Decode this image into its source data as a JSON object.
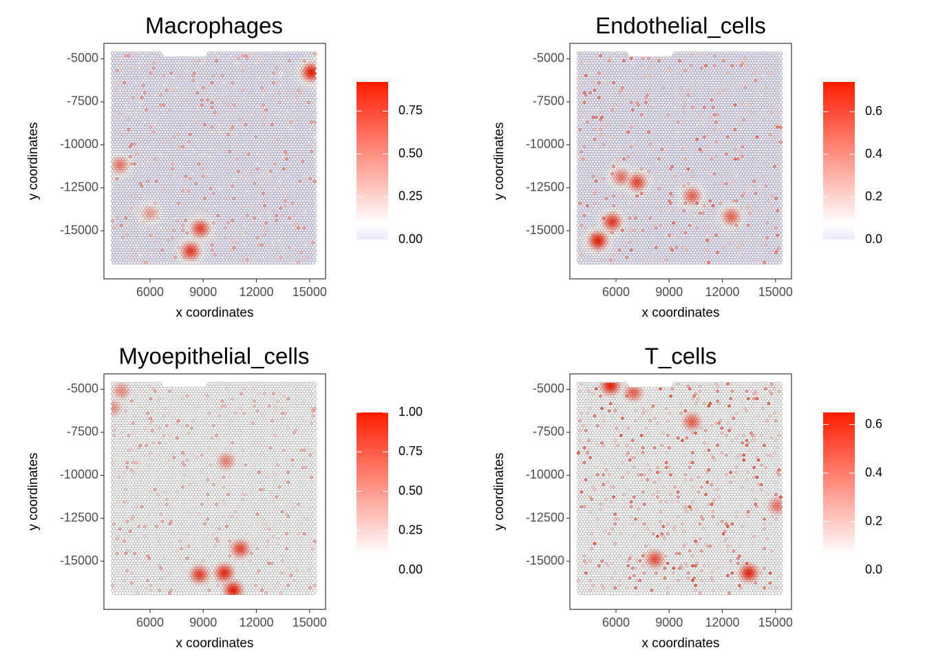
{
  "chart_data": [
    {
      "type": "scatter",
      "title": "Macrophages",
      "xlabel": "x coordinates",
      "ylabel": "y coordinates",
      "xticks": [
        "6000",
        "9000",
        "12000",
        "15000"
      ],
      "yticks": [
        "-5000",
        "-7500",
        "-10000",
        "-12500",
        "-15000"
      ],
      "xlim": [
        3400,
        15900
      ],
      "ylim": [
        -17800,
        -4100
      ],
      "legend": {
        "ticks": [
          "0.00",
          "0.25",
          "0.50",
          "0.75"
        ],
        "tick_values": [
          0,
          0.25,
          0.5,
          0.75
        ],
        "min": 0,
        "max": 0.92,
        "low_color": "#ece9fb",
        "mid_color": "#ffffff",
        "high_color": "#ff1c00",
        "placement": "right"
      },
      "hotspots": [
        {
          "x": 15100,
          "y": -5800,
          "value": 0.92
        },
        {
          "x": 8850,
          "y": -14900,
          "value": 0.75
        },
        {
          "x": 8300,
          "y": -16200,
          "value": 0.8
        },
        {
          "x": 4300,
          "y": -11200,
          "value": 0.55
        },
        {
          "x": 6000,
          "y": -14000,
          "value": 0.4
        }
      ]
    },
    {
      "type": "scatter",
      "title": "Endothelial_cells",
      "xlabel": "x coordinates",
      "ylabel": "y coordinates",
      "xticks": [
        "6000",
        "9000",
        "12000",
        "15000"
      ],
      "yticks": [
        "-5000",
        "-7500",
        "-10000",
        "-12500",
        "-15000"
      ],
      "xlim": [
        3400,
        15900
      ],
      "ylim": [
        -17800,
        -4100
      ],
      "legend": {
        "ticks": [
          "0.0",
          "0.2",
          "0.4",
          "0.6"
        ],
        "tick_values": [
          0,
          0.2,
          0.4,
          0.6
        ],
        "min": 0,
        "max": 0.74,
        "low_color": "#ece9fb",
        "mid_color": "#ffffff",
        "high_color": "#ff1c00",
        "placement": "right"
      },
      "hotspots": [
        {
          "x": 5000,
          "y": -15600,
          "value": 0.74
        },
        {
          "x": 5800,
          "y": -14500,
          "value": 0.65
        },
        {
          "x": 12500,
          "y": -14200,
          "value": 0.5
        },
        {
          "x": 10300,
          "y": -13000,
          "value": 0.5
        },
        {
          "x": 7200,
          "y": -12200,
          "value": 0.6
        },
        {
          "x": 6300,
          "y": -11900,
          "value": 0.45
        }
      ]
    },
    {
      "type": "scatter",
      "title": "Myoepithelial_cells",
      "xlabel": "x coordinates",
      "ylabel": "y coordinates",
      "xticks": [
        "6000",
        "9000",
        "12000",
        "15000"
      ],
      "yticks": [
        "-5000",
        "-7500",
        "-10000",
        "-12500",
        "-15000"
      ],
      "xlim": [
        3400,
        15900
      ],
      "ylim": [
        -17800,
        -4100
      ],
      "legend": {
        "ticks": [
          "0.00",
          "0.25",
          "0.50",
          "0.75",
          "1.00"
        ],
        "tick_values": [
          0,
          0.25,
          0.5,
          0.75,
          1.0
        ],
        "min": 0,
        "max": 1.0,
        "low_color": "#ffffff",
        "mid_color": "#ffffff",
        "high_color": "#ff1c00",
        "placement": "right"
      },
      "hotspots": [
        {
          "x": 10200,
          "y": -15700,
          "value": 0.95
        },
        {
          "x": 10700,
          "y": -16700,
          "value": 1.0
        },
        {
          "x": 8800,
          "y": -15800,
          "value": 0.85
        },
        {
          "x": 11100,
          "y": -14300,
          "value": 0.8
        },
        {
          "x": 10300,
          "y": -9200,
          "value": 0.55
        },
        {
          "x": 4400,
          "y": -5100,
          "value": 0.5
        },
        {
          "x": 3900,
          "y": -6100,
          "value": 0.5
        }
      ]
    },
    {
      "type": "scatter",
      "title": "T_cells",
      "xlabel": "x coordinates",
      "ylabel": "y coordinates",
      "xticks": [
        "6000",
        "9000",
        "12000",
        "15000"
      ],
      "yticks": [
        "-5000",
        "-7500",
        "-10000",
        "-12500",
        "-15000"
      ],
      "xlim": [
        3400,
        15900
      ],
      "ylim": [
        -17800,
        -4100
      ],
      "legend": {
        "ticks": [
          "0.0",
          "0.2",
          "0.4",
          "0.6"
        ],
        "tick_values": [
          0,
          0.2,
          0.4,
          0.6
        ],
        "min": 0,
        "max": 0.65,
        "low_color": "#ffffff",
        "mid_color": "#ffffff",
        "high_color": "#ff1c00",
        "placement": "right"
      },
      "hotspots": [
        {
          "x": 5700,
          "y": -4800,
          "value": 0.65
        },
        {
          "x": 13500,
          "y": -15700,
          "value": 0.62
        },
        {
          "x": 8200,
          "y": -14900,
          "value": 0.5
        },
        {
          "x": 10300,
          "y": -6900,
          "value": 0.45
        },
        {
          "x": 15100,
          "y": -11800,
          "value": 0.4
        },
        {
          "x": 7000,
          "y": -5200,
          "value": 0.45
        }
      ]
    }
  ]
}
